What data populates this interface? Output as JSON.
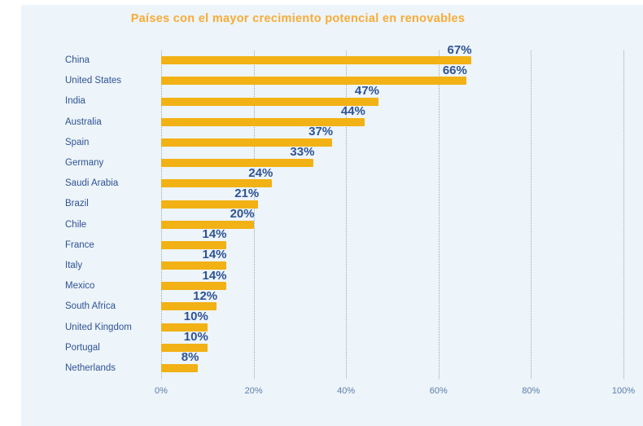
{
  "title": "Países con el mayor crecimiento potencial en renovables",
  "chart_data": {
    "type": "bar",
    "orientation": "horizontal",
    "title": "Países con el mayor crecimiento potencial en renovables",
    "categories": [
      "China",
      "United States",
      "India",
      "Australia",
      "Spain",
      "Germany",
      "Saudi Arabia",
      "Brazil",
      "Chile",
      "France",
      "Italy",
      "Mexico",
      "South Africa",
      "United Kingdom",
      "Portugal",
      "Netherlands"
    ],
    "values": [
      67,
      66,
      47,
      44,
      37,
      33,
      24,
      21,
      20,
      14,
      14,
      14,
      12,
      10,
      10,
      8
    ],
    "value_labels": [
      "67%",
      "66%",
      "47%",
      "44%",
      "37%",
      "33%",
      "24%",
      "21%",
      "20%",
      "14%",
      "14%",
      "14%",
      "12%",
      "10%",
      "10%",
      "8%"
    ],
    "x_ticks": [
      "0%",
      "20%",
      "40%",
      "60%",
      "80%",
      "100%"
    ],
    "x_tick_values": [
      0,
      20,
      40,
      60,
      80,
      100
    ],
    "xlim": [
      0,
      100
    ],
    "grid": "dotted-vertical",
    "legend": "none",
    "colors": {
      "bar": "#F2B114",
      "title": "#F8AC35",
      "label_text": "#2E5394",
      "axis_text": "#5B7EA9",
      "gridline": "#9FA8B2",
      "panel_background": "#EDF4FA",
      "page_background": "#FFFFFF"
    }
  }
}
